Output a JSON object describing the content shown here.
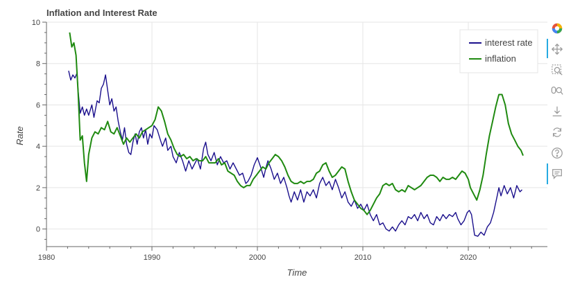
{
  "chart_data": {
    "type": "line",
    "title": "Inflation and Interest Rate",
    "xlabel": "Time",
    "ylabel": "Rate",
    "xlim": [
      1980,
      2027.5
    ],
    "ylim": [
      -0.85,
      10
    ],
    "x_ticks": [
      "1980",
      "1990",
      "2000",
      "2010",
      "2020"
    ],
    "y_ticks": [
      "0",
      "2",
      "4",
      "6",
      "8",
      "10"
    ],
    "grid": true,
    "legend_position": "top-right",
    "series": [
      {
        "name": "interest rate",
        "color": "#1a0f8c",
        "points": [
          [
            1982.1,
            7.65
          ],
          [
            1982.3,
            7.2
          ],
          [
            1982.5,
            7.45
          ],
          [
            1982.7,
            7.3
          ],
          [
            1982.9,
            7.55
          ],
          [
            1983.0,
            6.7
          ],
          [
            1983.2,
            5.6
          ],
          [
            1983.4,
            5.9
          ],
          [
            1983.6,
            5.5
          ],
          [
            1983.8,
            5.8
          ],
          [
            1984.0,
            5.5
          ],
          [
            1984.3,
            6.0
          ],
          [
            1984.5,
            5.4
          ],
          [
            1984.8,
            6.2
          ],
          [
            1985.0,
            6.1
          ],
          [
            1985.2,
            6.8
          ],
          [
            1985.4,
            7.0
          ],
          [
            1985.6,
            7.45
          ],
          [
            1985.8,
            6.7
          ],
          [
            1986.0,
            6.0
          ],
          [
            1986.2,
            6.3
          ],
          [
            1986.4,
            5.7
          ],
          [
            1986.6,
            5.9
          ],
          [
            1986.8,
            5.2
          ],
          [
            1987.0,
            4.7
          ],
          [
            1987.2,
            4.3
          ],
          [
            1987.4,
            4.9
          ],
          [
            1987.6,
            4.1
          ],
          [
            1987.8,
            3.7
          ],
          [
            1988.0,
            3.6
          ],
          [
            1988.2,
            4.2
          ],
          [
            1988.4,
            4.6
          ],
          [
            1988.6,
            4.1
          ],
          [
            1988.8,
            4.7
          ],
          [
            1989.0,
            4.9
          ],
          [
            1989.2,
            4.4
          ],
          [
            1989.4,
            4.8
          ],
          [
            1989.6,
            4.1
          ],
          [
            1989.8,
            4.6
          ],
          [
            1990.0,
            4.4
          ],
          [
            1990.2,
            5.0
          ],
          [
            1990.5,
            4.8
          ],
          [
            1990.8,
            4.3
          ],
          [
            1991.0,
            4.0
          ],
          [
            1991.3,
            4.4
          ],
          [
            1991.5,
            3.8
          ],
          [
            1991.8,
            4.0
          ],
          [
            1992.0,
            3.5
          ],
          [
            1992.3,
            3.2
          ],
          [
            1992.6,
            3.7
          ],
          [
            1992.9,
            3.3
          ],
          [
            1993.2,
            2.8
          ],
          [
            1993.5,
            3.3
          ],
          [
            1993.8,
            2.9
          ],
          [
            1994.0,
            3.1
          ],
          [
            1994.3,
            3.4
          ],
          [
            1994.6,
            2.9
          ],
          [
            1994.9,
            3.9
          ],
          [
            1995.1,
            4.2
          ],
          [
            1995.3,
            3.6
          ],
          [
            1995.6,
            3.3
          ],
          [
            1995.9,
            3.7
          ],
          [
            1996.2,
            3.1
          ],
          [
            1996.5,
            3.5
          ],
          [
            1996.8,
            3.2
          ],
          [
            1997.1,
            3.3
          ],
          [
            1997.4,
            2.9
          ],
          [
            1997.7,
            3.2
          ],
          [
            1998.0,
            2.9
          ],
          [
            1998.3,
            2.6
          ],
          [
            1998.6,
            2.7
          ],
          [
            1998.9,
            2.2
          ],
          [
            1999.1,
            2.3
          ],
          [
            1999.4,
            2.6
          ],
          [
            1999.7,
            3.1
          ],
          [
            2000.0,
            3.45
          ],
          [
            2000.3,
            3.0
          ],
          [
            2000.6,
            2.5
          ],
          [
            2000.8,
            2.95
          ],
          [
            2001.0,
            3.3
          ],
          [
            2001.3,
            2.9
          ],
          [
            2001.6,
            2.4
          ],
          [
            2001.9,
            2.7
          ],
          [
            2002.2,
            2.2
          ],
          [
            2002.5,
            2.5
          ],
          [
            2002.8,
            2.0
          ],
          [
            2003.0,
            1.6
          ],
          [
            2003.2,
            1.3
          ],
          [
            2003.5,
            1.8
          ],
          [
            2003.8,
            1.4
          ],
          [
            2004.1,
            1.9
          ],
          [
            2004.4,
            1.3
          ],
          [
            2004.7,
            1.8
          ],
          [
            2005.0,
            1.6
          ],
          [
            2005.3,
            1.9
          ],
          [
            2005.6,
            1.5
          ],
          [
            2005.9,
            2.2
          ],
          [
            2006.2,
            2.5
          ],
          [
            2006.5,
            2.1
          ],
          [
            2006.8,
            2.3
          ],
          [
            2007.1,
            1.9
          ],
          [
            2007.4,
            2.4
          ],
          [
            2007.7,
            2.0
          ],
          [
            2008.0,
            1.5
          ],
          [
            2008.3,
            1.8
          ],
          [
            2008.6,
            1.3
          ],
          [
            2008.9,
            1.1
          ],
          [
            2009.2,
            1.4
          ],
          [
            2009.5,
            1.0
          ],
          [
            2009.8,
            1.2
          ],
          [
            2010.1,
            0.9
          ],
          [
            2010.4,
            1.2
          ],
          [
            2010.7,
            0.7
          ],
          [
            2011.0,
            0.4
          ],
          [
            2011.3,
            0.7
          ],
          [
            2011.6,
            0.2
          ],
          [
            2011.9,
            0.3
          ],
          [
            2012.2,
            0.0
          ],
          [
            2012.5,
            -0.1
          ],
          [
            2012.8,
            0.1
          ],
          [
            2013.1,
            -0.1
          ],
          [
            2013.4,
            0.2
          ],
          [
            2013.7,
            0.4
          ],
          [
            2014.0,
            0.2
          ],
          [
            2014.3,
            0.6
          ],
          [
            2014.6,
            0.5
          ],
          [
            2014.9,
            0.7
          ],
          [
            2015.2,
            0.4
          ],
          [
            2015.5,
            0.8
          ],
          [
            2015.8,
            0.5
          ],
          [
            2016.1,
            0.7
          ],
          [
            2016.4,
            0.3
          ],
          [
            2016.7,
            0.2
          ],
          [
            2017.0,
            0.6
          ],
          [
            2017.3,
            0.4
          ],
          [
            2017.6,
            0.7
          ],
          [
            2017.9,
            0.5
          ],
          [
            2018.2,
            0.7
          ],
          [
            2018.5,
            0.6
          ],
          [
            2018.8,
            0.8
          ],
          [
            2019.0,
            0.5
          ],
          [
            2019.3,
            0.2
          ],
          [
            2019.6,
            0.4
          ],
          [
            2019.9,
            0.8
          ],
          [
            2020.1,
            0.9
          ],
          [
            2020.3,
            0.7
          ],
          [
            2020.6,
            -0.3
          ],
          [
            2020.9,
            -0.35
          ],
          [
            2021.2,
            -0.15
          ],
          [
            2021.5,
            -0.3
          ],
          [
            2021.8,
            0.1
          ],
          [
            2022.1,
            0.3
          ],
          [
            2022.4,
            0.8
          ],
          [
            2022.7,
            1.5
          ],
          [
            2022.9,
            2.0
          ],
          [
            2023.1,
            1.6
          ],
          [
            2023.4,
            2.1
          ],
          [
            2023.7,
            1.7
          ],
          [
            2024.0,
            2.0
          ],
          [
            2024.3,
            1.5
          ],
          [
            2024.6,
            2.1
          ],
          [
            2024.9,
            1.8
          ],
          [
            2025.1,
            1.9
          ]
        ]
      },
      {
        "name": "inflation",
        "color": "#1f8a10",
        "points": [
          [
            1982.2,
            9.5
          ],
          [
            1982.4,
            8.8
          ],
          [
            1982.6,
            9.0
          ],
          [
            1982.8,
            8.4
          ],
          [
            1983.0,
            6.6
          ],
          [
            1983.2,
            4.3
          ],
          [
            1983.4,
            4.5
          ],
          [
            1983.6,
            3.2
          ],
          [
            1983.8,
            2.3
          ],
          [
            1984.0,
            3.6
          ],
          [
            1984.3,
            4.4
          ],
          [
            1984.6,
            4.7
          ],
          [
            1984.9,
            4.6
          ],
          [
            1985.2,
            4.9
          ],
          [
            1985.5,
            4.8
          ],
          [
            1985.8,
            5.2
          ],
          [
            1986.1,
            4.7
          ],
          [
            1986.4,
            4.6
          ],
          [
            1986.7,
            4.9
          ],
          [
            1987.0,
            4.5
          ],
          [
            1987.3,
            4.1
          ],
          [
            1987.6,
            4.4
          ],
          [
            1987.9,
            4.2
          ],
          [
            1988.2,
            4.4
          ],
          [
            1988.5,
            4.6
          ],
          [
            1988.8,
            4.4
          ],
          [
            1989.1,
            4.7
          ],
          [
            1989.4,
            4.8
          ],
          [
            1989.7,
            4.9
          ],
          [
            1990.0,
            5.0
          ],
          [
            1990.3,
            5.3
          ],
          [
            1990.6,
            5.9
          ],
          [
            1990.9,
            5.7
          ],
          [
            1991.2,
            5.2
          ],
          [
            1991.5,
            4.6
          ],
          [
            1991.8,
            4.3
          ],
          [
            1992.1,
            3.9
          ],
          [
            1992.4,
            3.6
          ],
          [
            1992.7,
            3.5
          ],
          [
            1993.0,
            3.6
          ],
          [
            1993.3,
            3.4
          ],
          [
            1993.6,
            3.5
          ],
          [
            1993.9,
            3.3
          ],
          [
            1994.2,
            3.4
          ],
          [
            1994.5,
            3.3
          ],
          [
            1994.8,
            3.3
          ],
          [
            1995.1,
            3.5
          ],
          [
            1995.4,
            3.2
          ],
          [
            1995.7,
            3.2
          ],
          [
            1996.0,
            3.2
          ],
          [
            1996.3,
            3.4
          ],
          [
            1996.6,
            3.1
          ],
          [
            1996.9,
            3.2
          ],
          [
            1997.2,
            2.8
          ],
          [
            1997.5,
            2.7
          ],
          [
            1997.8,
            2.6
          ],
          [
            1998.1,
            2.3
          ],
          [
            1998.4,
            2.1
          ],
          [
            1998.7,
            2.0
          ],
          [
            1999.0,
            2.1
          ],
          [
            1999.3,
            2.1
          ],
          [
            1999.6,
            2.4
          ],
          [
            1999.9,
            2.6
          ],
          [
            2000.2,
            2.8
          ],
          [
            2000.5,
            3.0
          ],
          [
            2000.8,
            2.9
          ],
          [
            2001.1,
            3.2
          ],
          [
            2001.4,
            3.4
          ],
          [
            2001.7,
            3.6
          ],
          [
            2002.0,
            3.5
          ],
          [
            2002.3,
            3.3
          ],
          [
            2002.6,
            3.0
          ],
          [
            2002.9,
            2.6
          ],
          [
            2003.2,
            2.3
          ],
          [
            2003.5,
            2.2
          ],
          [
            2003.8,
            2.2
          ],
          [
            2004.1,
            2.3
          ],
          [
            2004.4,
            2.2
          ],
          [
            2004.7,
            2.3
          ],
          [
            2005.0,
            2.3
          ],
          [
            2005.3,
            2.4
          ],
          [
            2005.6,
            2.7
          ],
          [
            2005.9,
            2.8
          ],
          [
            2006.2,
            3.1
          ],
          [
            2006.5,
            3.2
          ],
          [
            2006.8,
            2.8
          ],
          [
            2007.1,
            2.5
          ],
          [
            2007.4,
            2.6
          ],
          [
            2007.7,
            2.8
          ],
          [
            2008.0,
            3.0
          ],
          [
            2008.3,
            2.9
          ],
          [
            2008.6,
            2.3
          ],
          [
            2008.9,
            1.8
          ],
          [
            2009.2,
            1.4
          ],
          [
            2009.5,
            1.2
          ],
          [
            2009.8,
            1.0
          ],
          [
            2010.1,
            0.9
          ],
          [
            2010.4,
            0.7
          ],
          [
            2010.7,
            0.9
          ],
          [
            2011.0,
            1.2
          ],
          [
            2011.3,
            1.5
          ],
          [
            2011.6,
            1.7
          ],
          [
            2011.9,
            2.1
          ],
          [
            2012.2,
            2.2
          ],
          [
            2012.5,
            2.1
          ],
          [
            2012.8,
            2.2
          ],
          [
            2013.1,
            1.9
          ],
          [
            2013.4,
            1.8
          ],
          [
            2013.7,
            1.9
          ],
          [
            2014.0,
            1.8
          ],
          [
            2014.3,
            2.1
          ],
          [
            2014.6,
            2.0
          ],
          [
            2014.9,
            1.9
          ],
          [
            2015.2,
            2.0
          ],
          [
            2015.5,
            2.1
          ],
          [
            2015.8,
            2.3
          ],
          [
            2016.1,
            2.5
          ],
          [
            2016.4,
            2.6
          ],
          [
            2016.7,
            2.6
          ],
          [
            2017.0,
            2.5
          ],
          [
            2017.3,
            2.3
          ],
          [
            2017.6,
            2.5
          ],
          [
            2017.9,
            2.4
          ],
          [
            2018.2,
            2.4
          ],
          [
            2018.5,
            2.5
          ],
          [
            2018.8,
            2.4
          ],
          [
            2019.1,
            2.6
          ],
          [
            2019.4,
            2.8
          ],
          [
            2019.7,
            2.7
          ],
          [
            2020.0,
            2.4
          ],
          [
            2020.2,
            2.0
          ],
          [
            2020.5,
            1.7
          ],
          [
            2020.8,
            1.4
          ],
          [
            2021.1,
            1.9
          ],
          [
            2021.4,
            2.6
          ],
          [
            2021.7,
            3.6
          ],
          [
            2022.0,
            4.5
          ],
          [
            2022.3,
            5.2
          ],
          [
            2022.6,
            5.9
          ],
          [
            2022.9,
            6.5
          ],
          [
            2023.2,
            6.5
          ],
          [
            2023.5,
            6.0
          ],
          [
            2023.8,
            5.1
          ],
          [
            2024.1,
            4.6
          ],
          [
            2024.4,
            4.3
          ],
          [
            2024.7,
            4.0
          ],
          [
            2025.0,
            3.8
          ],
          [
            2025.2,
            3.55
          ]
        ]
      }
    ]
  },
  "toolbar": {
    "items": [
      "logo-icon",
      "pan-icon",
      "box-zoom-icon",
      "wheel-zoom-icon",
      "save-icon",
      "reset-icon",
      "help-icon",
      "hover-icon"
    ]
  }
}
